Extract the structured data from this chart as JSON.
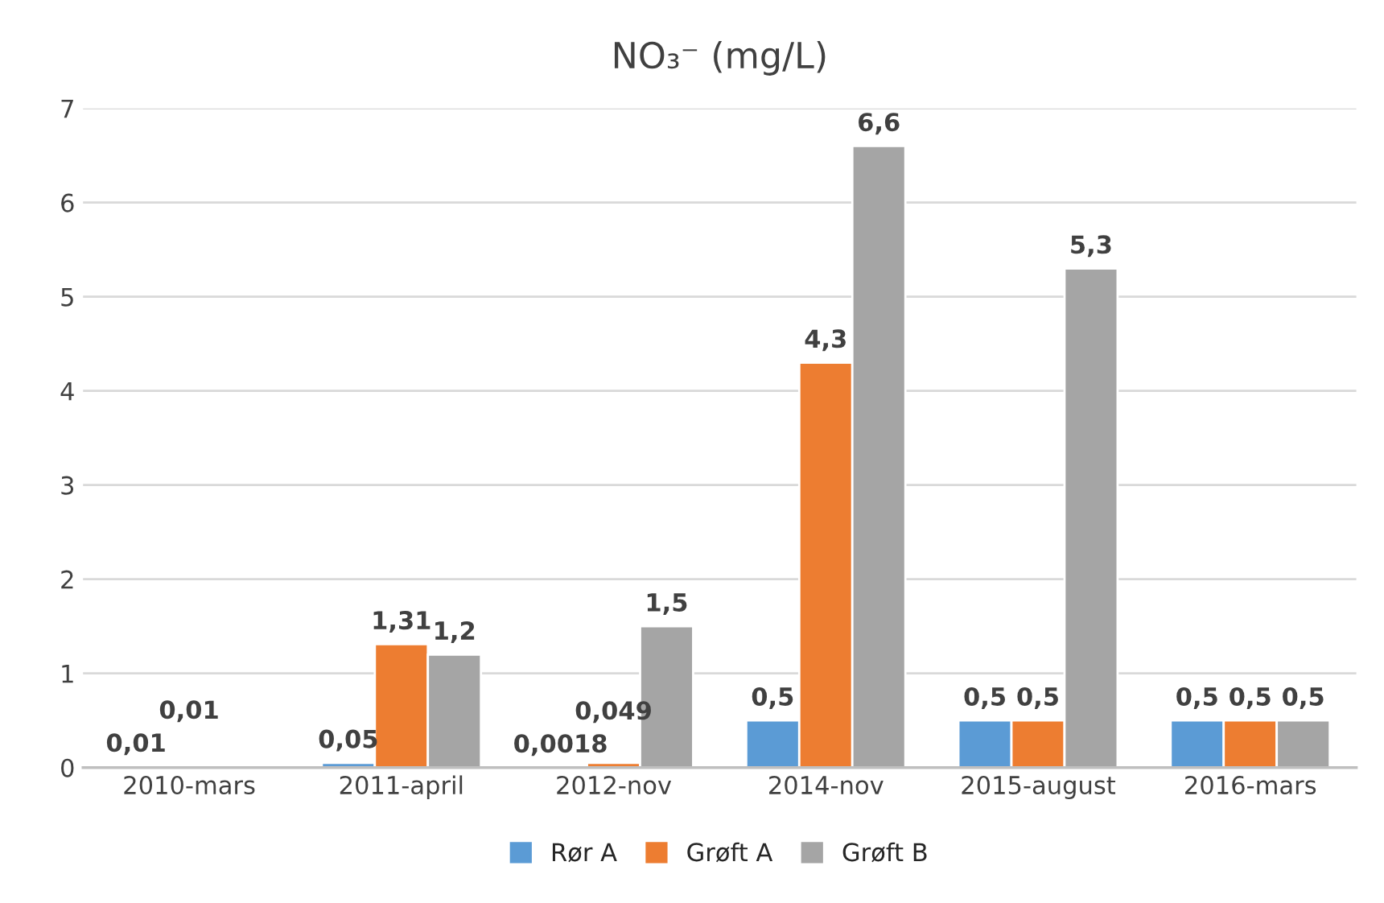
{
  "chart_data": {
    "type": "bar",
    "title": "NO₃⁻ (mg/L)",
    "categories": [
      "2010-mars",
      "2011-april",
      "2012-nov",
      "2014-nov",
      "2015-august",
      "2016-mars"
    ],
    "series": [
      {
        "name": "Rør A",
        "color": "#5b9bd5",
        "values": [
          0.01,
          0.05,
          0.0018,
          0.5,
          0.5,
          0.5
        ],
        "value_labels": [
          "0,01",
          "0,05",
          "0,0018",
          "0,5",
          "0,5",
          "0,5"
        ]
      },
      {
        "name": "Grøft A",
        "color": "#ed7d31",
        "values": [
          0.01,
          1.31,
          0.049,
          4.3,
          0.5,
          0.5
        ],
        "value_labels": [
          "0,01",
          "1,31",
          "0,049",
          "4,3",
          "0,5",
          "0,5"
        ]
      },
      {
        "name": "Grøft B",
        "color": "#a5a5a5",
        "values": [
          null,
          1.2,
          1.5,
          6.6,
          5.3,
          0.5
        ],
        "value_labels": [
          null,
          "1,2",
          "1,5",
          "6,6",
          "5,3",
          "0,5"
        ]
      }
    ],
    "ylim": [
      0,
      7
    ],
    "yticks": [
      0,
      1,
      2,
      3,
      4,
      5,
      6,
      7
    ],
    "grid": "y",
    "legend": "bottom"
  }
}
